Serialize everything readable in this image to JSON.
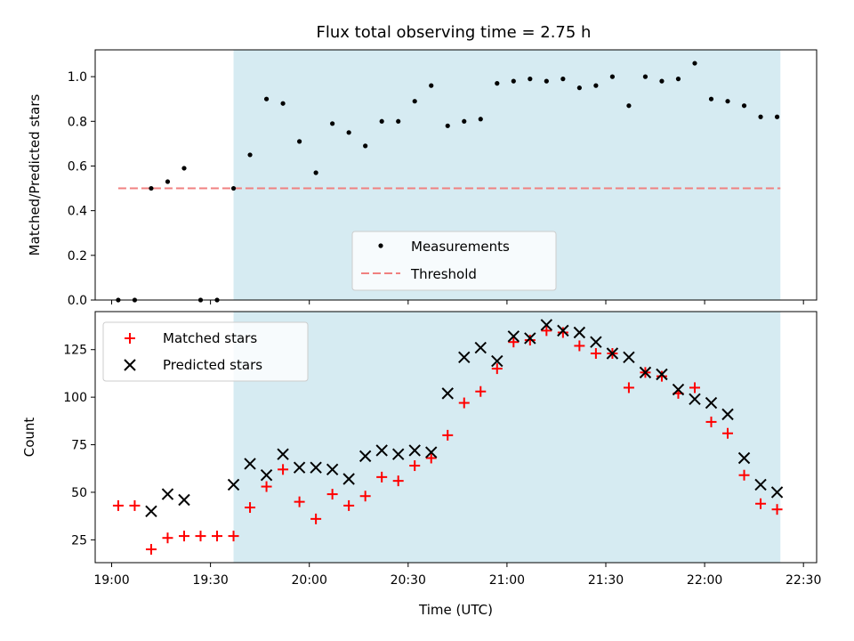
{
  "title": "Flux total observing time = 2.75 h",
  "colors": {
    "shade": "#add8e6",
    "threshold": "#f08080",
    "measurements": "#000000",
    "matched": "#ff0000",
    "predicted": "#000000"
  },
  "chart_data": [
    {
      "type": "scatter",
      "panel": "top",
      "ylabel": "Matched/Predicted stars",
      "ylim": [
        0,
        1.12
      ],
      "yticks": [
        0.0,
        0.2,
        0.4,
        0.6,
        0.8,
        1.0
      ],
      "ytick_labels": [
        "0.0",
        "0.2",
        "0.4",
        "0.6",
        "0.8",
        "1.0"
      ],
      "shaded_region": [
        "19:37",
        "22:23"
      ],
      "legend": {
        "placement": "lower-center",
        "entries": [
          "Measurements",
          "Threshold"
        ]
      },
      "threshold": {
        "name": "Threshold",
        "value": 0.5,
        "x_range": [
          "19:02",
          "22:23"
        ]
      },
      "series": [
        {
          "name": "Measurements",
          "x": [
            "19:02",
            "19:07",
            "19:12",
            "19:17",
            "19:22",
            "19:27",
            "19:32",
            "19:37",
            "19:42",
            "19:47",
            "19:52",
            "19:57",
            "20:02",
            "20:07",
            "20:12",
            "20:17",
            "20:22",
            "20:27",
            "20:32",
            "20:37",
            "20:42",
            "20:47",
            "20:52",
            "20:57",
            "21:02",
            "21:07",
            "21:12",
            "21:17",
            "21:22",
            "21:27",
            "21:32",
            "21:37",
            "21:42",
            "21:47",
            "21:52",
            "21:57",
            "22:02",
            "22:07",
            "22:12",
            "22:17",
            "22:22"
          ],
          "y": [
            0.0,
            0.0,
            0.5,
            0.53,
            0.59,
            0.0,
            0.0,
            0.5,
            0.65,
            0.9,
            0.88,
            0.71,
            0.57,
            0.79,
            0.75,
            0.69,
            0.8,
            0.8,
            0.89,
            0.96,
            0.78,
            0.8,
            0.81,
            0.97,
            0.98,
            0.99,
            0.98,
            0.99,
            0.95,
            0.96,
            1.0,
            0.87,
            1.0,
            0.98,
            0.99,
            1.06,
            0.9,
            0.89,
            0.87,
            0.82,
            0.82
          ]
        }
      ]
    },
    {
      "type": "scatter",
      "panel": "bottom",
      "xlabel": "Time (UTC)",
      "ylabel": "Count",
      "ylim": [
        13,
        145
      ],
      "yticks": [
        25,
        50,
        75,
        100,
        125
      ],
      "ytick_labels": [
        "25",
        "50",
        "75",
        "100",
        "125"
      ],
      "xticks": [
        "19:00",
        "19:30",
        "20:00",
        "20:30",
        "21:00",
        "21:30",
        "22:00",
        "22:30"
      ],
      "xlim": [
        "18:55",
        "22:34"
      ],
      "shaded_region": [
        "19:37",
        "22:23"
      ],
      "legend": {
        "placement": "upper-left",
        "entries": [
          "Matched stars",
          "Predicted stars"
        ]
      },
      "series": [
        {
          "name": "Matched stars",
          "x": [
            "19:02",
            "19:07",
            "19:12",
            "19:17",
            "19:22",
            "19:27",
            "19:32",
            "19:37",
            "19:42",
            "19:47",
            "19:52",
            "19:57",
            "20:02",
            "20:07",
            "20:12",
            "20:17",
            "20:22",
            "20:27",
            "20:32",
            "20:37",
            "20:42",
            "20:47",
            "20:52",
            "20:57",
            "21:02",
            "21:07",
            "21:12",
            "21:17",
            "21:22",
            "21:27",
            "21:32",
            "21:37",
            "21:42",
            "21:47",
            "21:52",
            "21:57",
            "22:02",
            "22:07",
            "22:12",
            "22:17",
            "22:22"
          ],
          "y": [
            43,
            43,
            20,
            26,
            27,
            27,
            27,
            27,
            42,
            53,
            62,
            45,
            36,
            49,
            43,
            48,
            58,
            56,
            64,
            68,
            80,
            97,
            103,
            115,
            129,
            130,
            135,
            134,
            127,
            123,
            123,
            105,
            113,
            111,
            102,
            105,
            87,
            81,
            59,
            44,
            41
          ]
        },
        {
          "name": "Predicted stars",
          "x": [
            "19:12",
            "19:17",
            "19:22",
            "19:37",
            "19:42",
            "19:47",
            "19:52",
            "19:57",
            "20:02",
            "20:07",
            "20:12",
            "20:17",
            "20:22",
            "20:27",
            "20:32",
            "20:37",
            "20:42",
            "20:47",
            "20:52",
            "20:57",
            "21:02",
            "21:07",
            "21:12",
            "21:17",
            "21:22",
            "21:27",
            "21:32",
            "21:37",
            "21:42",
            "21:47",
            "21:52",
            "21:57",
            "22:02",
            "22:07",
            "22:12",
            "22:17",
            "22:22"
          ],
          "y": [
            40,
            49,
            46,
            54,
            65,
            59,
            70,
            63,
            63,
            62,
            57,
            69,
            72,
            70,
            72,
            71,
            102,
            121,
            126,
            119,
            132,
            131,
            138,
            135,
            134,
            129,
            123,
            121,
            113,
            112,
            104,
            99,
            97,
            91,
            68,
            54,
            50
          ]
        }
      ]
    }
  ]
}
